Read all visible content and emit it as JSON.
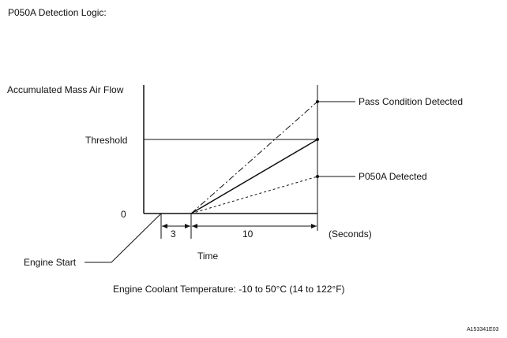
{
  "title": "P050A Detection Logic:",
  "axis": {
    "y_label": "Accumulated Mass Air Flow",
    "threshold_label": "Threshold",
    "zero_label": "0",
    "x_label": "Time",
    "units_label": "(Seconds)"
  },
  "intervals": {
    "first": "3",
    "second": "10"
  },
  "callouts": {
    "pass": "Pass Condition Detected",
    "detected": "P050A Detected",
    "engine_start": "Engine Start"
  },
  "condition": "Engine Coolant Temperature: -10 to 50°C (14 to 122°F)",
  "figure_id": "A153341E03",
  "chart_data": {
    "type": "line",
    "x_unit": "Seconds",
    "intervals_seconds": [
      3,
      10
    ],
    "series": [
      {
        "name": "Pass Condition Detected",
        "x": [
          3,
          13
        ],
        "y": [
          0,
          1.5
        ],
        "style": "dash-dot"
      },
      {
        "name": "",
        "x": [
          3,
          13
        ],
        "y": [
          0,
          1.0
        ],
        "style": "solid"
      },
      {
        "name": "P050A Detected",
        "x": [
          3,
          13
        ],
        "y": [
          0,
          0.5
        ],
        "style": "dashed"
      }
    ],
    "threshold": 1.0
  }
}
